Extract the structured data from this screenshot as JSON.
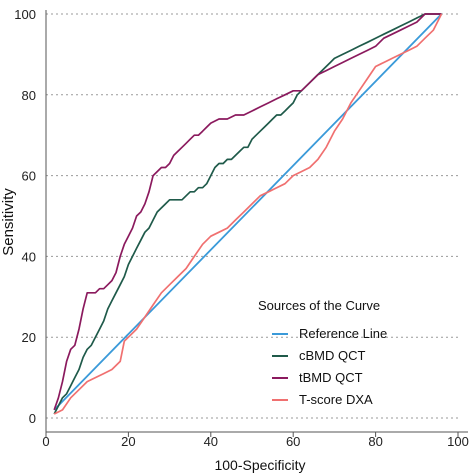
{
  "chart_data": {
    "type": "line",
    "title": "",
    "xlabel": "100-Specificity",
    "ylabel": "Sensitivity",
    "xlim": [
      0,
      100
    ],
    "ylim": [
      0,
      100
    ],
    "x_ticks": [
      "0",
      "20",
      "40",
      "60",
      "80",
      "100"
    ],
    "y_ticks": [
      "0",
      "20",
      "40",
      "60",
      "80",
      "100"
    ],
    "grid": "horizontal dotted",
    "legend": {
      "title": "Sources of the Curve",
      "placement": "bottom-right",
      "entries": [
        "Reference Line",
        "cBMD QCT",
        "tBMD QCT",
        "T-score DXA"
      ]
    },
    "series": [
      {
        "name": "Reference Line",
        "color": "#3a9ad9",
        "points": [
          [
            2,
            2
          ],
          [
            96,
            100
          ]
        ]
      },
      {
        "name": "cBMD QCT",
        "color": "#1f5a4a",
        "points": [
          [
            2,
            1
          ],
          [
            3,
            3
          ],
          [
            4,
            5
          ],
          [
            5,
            6
          ],
          [
            6,
            8
          ],
          [
            7,
            10
          ],
          [
            8,
            12
          ],
          [
            9,
            15
          ],
          [
            10,
            17
          ],
          [
            11,
            18
          ],
          [
            12,
            20
          ],
          [
            13,
            22
          ],
          [
            14,
            24
          ],
          [
            15,
            27
          ],
          [
            16,
            29
          ],
          [
            17,
            31
          ],
          [
            18,
            33
          ],
          [
            19,
            35
          ],
          [
            20,
            38
          ],
          [
            21,
            40
          ],
          [
            22,
            42
          ],
          [
            23,
            44
          ],
          [
            24,
            46
          ],
          [
            25,
            47
          ],
          [
            26,
            49
          ],
          [
            27,
            51
          ],
          [
            28,
            52
          ],
          [
            29,
            53
          ],
          [
            30,
            54
          ],
          [
            31,
            54
          ],
          [
            32,
            54
          ],
          [
            33,
            54
          ],
          [
            34,
            55
          ],
          [
            35,
            56
          ],
          [
            36,
            56
          ],
          [
            37,
            57
          ],
          [
            38,
            57
          ],
          [
            39,
            58
          ],
          [
            40,
            60
          ],
          [
            41,
            62
          ],
          [
            42,
            63
          ],
          [
            43,
            63
          ],
          [
            44,
            64
          ],
          [
            45,
            64
          ],
          [
            46,
            65
          ],
          [
            47,
            66
          ],
          [
            48,
            67
          ],
          [
            49,
            67
          ],
          [
            50,
            69
          ],
          [
            51,
            70
          ],
          [
            52,
            71
          ],
          [
            53,
            72
          ],
          [
            54,
            73
          ],
          [
            55,
            74
          ],
          [
            56,
            75
          ],
          [
            57,
            75
          ],
          [
            58,
            76
          ],
          [
            59,
            77
          ],
          [
            60,
            78
          ],
          [
            61,
            80
          ],
          [
            62,
            81
          ],
          [
            63,
            82
          ],
          [
            64,
            83
          ],
          [
            65,
            84
          ],
          [
            66,
            85
          ],
          [
            67,
            86
          ],
          [
            68,
            87
          ],
          [
            69,
            88
          ],
          [
            70,
            89
          ],
          [
            72,
            90
          ],
          [
            74,
            91
          ],
          [
            76,
            92
          ],
          [
            78,
            93
          ],
          [
            80,
            94
          ],
          [
            82,
            95
          ],
          [
            84,
            96
          ],
          [
            86,
            97
          ],
          [
            88,
            98
          ],
          [
            90,
            99
          ],
          [
            92,
            100
          ],
          [
            96,
            100
          ]
        ]
      },
      {
        "name": "tBMD QCT",
        "color": "#8b1a5e",
        "points": [
          [
            2,
            2
          ],
          [
            3,
            5
          ],
          [
            4,
            9
          ],
          [
            5,
            14
          ],
          [
            6,
            17
          ],
          [
            7,
            18
          ],
          [
            8,
            22
          ],
          [
            9,
            27
          ],
          [
            10,
            31
          ],
          [
            11,
            31
          ],
          [
            12,
            31
          ],
          [
            13,
            32
          ],
          [
            14,
            32
          ],
          [
            15,
            33
          ],
          [
            16,
            34
          ],
          [
            17,
            36
          ],
          [
            18,
            40
          ],
          [
            19,
            43
          ],
          [
            20,
            45
          ],
          [
            21,
            47
          ],
          [
            22,
            50
          ],
          [
            23,
            51
          ],
          [
            24,
            53
          ],
          [
            25,
            56
          ],
          [
            26,
            60
          ],
          [
            27,
            61
          ],
          [
            28,
            62
          ],
          [
            29,
            62
          ],
          [
            30,
            63
          ],
          [
            31,
            65
          ],
          [
            32,
            66
          ],
          [
            33,
            67
          ],
          [
            34,
            68
          ],
          [
            35,
            69
          ],
          [
            36,
            70
          ],
          [
            37,
            70
          ],
          [
            38,
            71
          ],
          [
            39,
            72
          ],
          [
            40,
            73
          ],
          [
            42,
            74
          ],
          [
            44,
            74
          ],
          [
            46,
            75
          ],
          [
            48,
            75
          ],
          [
            50,
            76
          ],
          [
            52,
            77
          ],
          [
            54,
            78
          ],
          [
            56,
            79
          ],
          [
            58,
            80
          ],
          [
            60,
            81
          ],
          [
            62,
            81
          ],
          [
            64,
            83
          ],
          [
            66,
            85
          ],
          [
            68,
            86
          ],
          [
            70,
            87
          ],
          [
            72,
            88
          ],
          [
            74,
            89
          ],
          [
            76,
            90
          ],
          [
            78,
            91
          ],
          [
            80,
            92
          ],
          [
            82,
            94
          ],
          [
            84,
            95
          ],
          [
            86,
            96
          ],
          [
            88,
            97
          ],
          [
            90,
            98
          ],
          [
            92,
            100
          ],
          [
            96,
            100
          ]
        ]
      },
      {
        "name": "T-score DXA",
        "color": "#f07070",
        "points": [
          [
            2,
            1
          ],
          [
            4,
            2
          ],
          [
            6,
            5
          ],
          [
            8,
            7
          ],
          [
            10,
            9
          ],
          [
            12,
            10
          ],
          [
            14,
            11
          ],
          [
            16,
            12
          ],
          [
            18,
            14
          ],
          [
            19,
            19
          ],
          [
            20,
            20
          ],
          [
            22,
            22
          ],
          [
            24,
            25
          ],
          [
            26,
            28
          ],
          [
            28,
            31
          ],
          [
            30,
            33
          ],
          [
            32,
            35
          ],
          [
            34,
            37
          ],
          [
            36,
            40
          ],
          [
            38,
            43
          ],
          [
            40,
            45
          ],
          [
            42,
            46
          ],
          [
            44,
            47
          ],
          [
            46,
            49
          ],
          [
            48,
            51
          ],
          [
            50,
            53
          ],
          [
            52,
            55
          ],
          [
            54,
            56
          ],
          [
            56,
            57
          ],
          [
            58,
            58
          ],
          [
            60,
            60
          ],
          [
            62,
            61
          ],
          [
            64,
            62
          ],
          [
            66,
            64
          ],
          [
            68,
            67
          ],
          [
            70,
            71
          ],
          [
            72,
            74
          ],
          [
            74,
            78
          ],
          [
            76,
            81
          ],
          [
            78,
            84
          ],
          [
            80,
            87
          ],
          [
            82,
            88
          ],
          [
            84,
            89
          ],
          [
            86,
            90
          ],
          [
            88,
            91
          ],
          [
            90,
            92
          ],
          [
            92,
            94
          ],
          [
            94,
            96
          ],
          [
            96,
            100
          ]
        ]
      }
    ]
  }
}
